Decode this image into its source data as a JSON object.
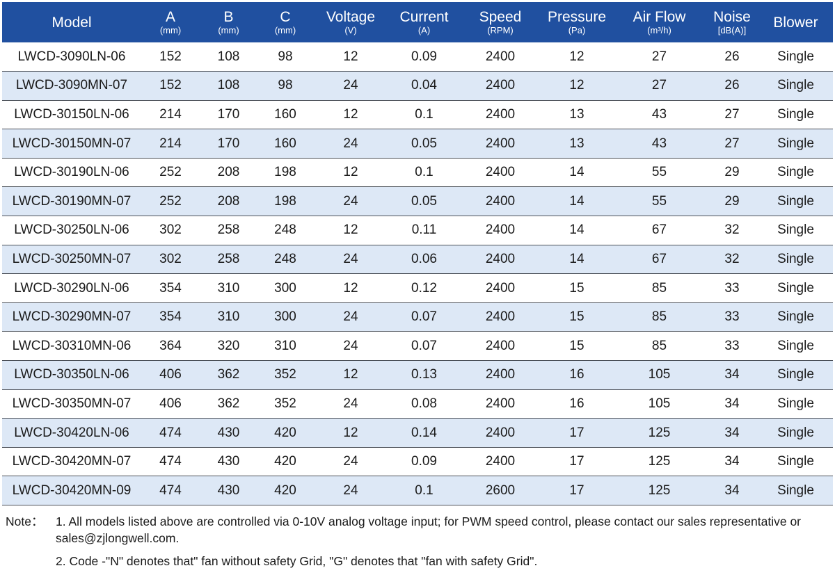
{
  "table": {
    "columns": [
      {
        "key": "model",
        "label": "Model",
        "unit": ""
      },
      {
        "key": "a",
        "label": "A",
        "unit": "(mm)"
      },
      {
        "key": "b",
        "label": "B",
        "unit": "(mm)"
      },
      {
        "key": "c",
        "label": "C",
        "unit": "(mm)"
      },
      {
        "key": "voltage",
        "label": "Voltage",
        "unit": "(V)"
      },
      {
        "key": "current",
        "label": "Current",
        "unit": "(A)"
      },
      {
        "key": "speed",
        "label": "Speed",
        "unit": "(RPM)"
      },
      {
        "key": "pressure",
        "label": "Pressure",
        "unit": "(Pa)"
      },
      {
        "key": "airflow",
        "label": "Air Flow",
        "unit": "(m³/h)"
      },
      {
        "key": "noise",
        "label": "Noise",
        "unit": "[dB(A)]"
      },
      {
        "key": "blower",
        "label": "Blower",
        "unit": ""
      }
    ],
    "rows": [
      [
        "LWCD-3090LN-06",
        "152",
        "108",
        "98",
        "12",
        "0.09",
        "2400",
        "12",
        "27",
        "26",
        "Single"
      ],
      [
        "LWCD-3090MN-07",
        "152",
        "108",
        "98",
        "24",
        "0.04",
        "2400",
        "12",
        "27",
        "26",
        "Single"
      ],
      [
        "LWCD-30150LN-06",
        "214",
        "170",
        "160",
        "12",
        "0.1",
        "2400",
        "13",
        "43",
        "27",
        "Single"
      ],
      [
        "LWCD-30150MN-07",
        "214",
        "170",
        "160",
        "24",
        "0.05",
        "2400",
        "13",
        "43",
        "27",
        "Single"
      ],
      [
        "LWCD-30190LN-06",
        "252",
        "208",
        "198",
        "12",
        "0.1",
        "2400",
        "14",
        "55",
        "29",
        "Single"
      ],
      [
        "LWCD-30190MN-07",
        "252",
        "208",
        "198",
        "24",
        "0.05",
        "2400",
        "14",
        "55",
        "29",
        "Single"
      ],
      [
        "LWCD-30250LN-06",
        "302",
        "258",
        "248",
        "12",
        "0.11",
        "2400",
        "14",
        "67",
        "32",
        "Single"
      ],
      [
        "LWCD-30250MN-07",
        "302",
        "258",
        "248",
        "24",
        "0.06",
        "2400",
        "14",
        "67",
        "32",
        "Single"
      ],
      [
        "LWCD-30290LN-06",
        "354",
        "310",
        "300",
        "12",
        "0.12",
        "2400",
        "15",
        "85",
        "33",
        "Single"
      ],
      [
        "LWCD-30290MN-07",
        "354",
        "310",
        "300",
        "24",
        "0.07",
        "2400",
        "15",
        "85",
        "33",
        "Single"
      ],
      [
        "LWCD-30310MN-06",
        "364",
        "320",
        "310",
        "24",
        "0.07",
        "2400",
        "15",
        "85",
        "33",
        "Single"
      ],
      [
        "LWCD-30350LN-06",
        "406",
        "362",
        "352",
        "12",
        "0.13",
        "2400",
        "16",
        "105",
        "34",
        "Single"
      ],
      [
        "LWCD-30350MN-07",
        "406",
        "362",
        "352",
        "24",
        "0.08",
        "2400",
        "16",
        "105",
        "34",
        "Single"
      ],
      [
        "LWCD-30420LN-06",
        "474",
        "430",
        "420",
        "12",
        "0.14",
        "2400",
        "17",
        "125",
        "34",
        "Single"
      ],
      [
        "LWCD-30420MN-07",
        "474",
        "430",
        "420",
        "24",
        "0.09",
        "2400",
        "17",
        "125",
        "34",
        "Single"
      ],
      [
        "LWCD-30420MN-09",
        "474",
        "430",
        "420",
        "24",
        "0.1",
        "2600",
        "17",
        "125",
        "34",
        "Single"
      ]
    ]
  },
  "notes": {
    "prefix": "Note：",
    "items": [
      {
        "text": "1. All models listed above are controlled via 0-10V analog voltage input; for PWM speed control, please contact our sales representative or sales@zjlongwell.com."
      },
      {
        "text": "2. Code -\"N\" denotes that\" fan without safety Grid, \"G\" denotes that \"fan with safety Grid\"."
      }
    ]
  },
  "colors": {
    "header_bg": "#2050a0",
    "header_text": "#ffffff",
    "row_alt_bg": "#dde8f6",
    "row_bg": "#ffffff",
    "row_border": "#4a4f57"
  }
}
